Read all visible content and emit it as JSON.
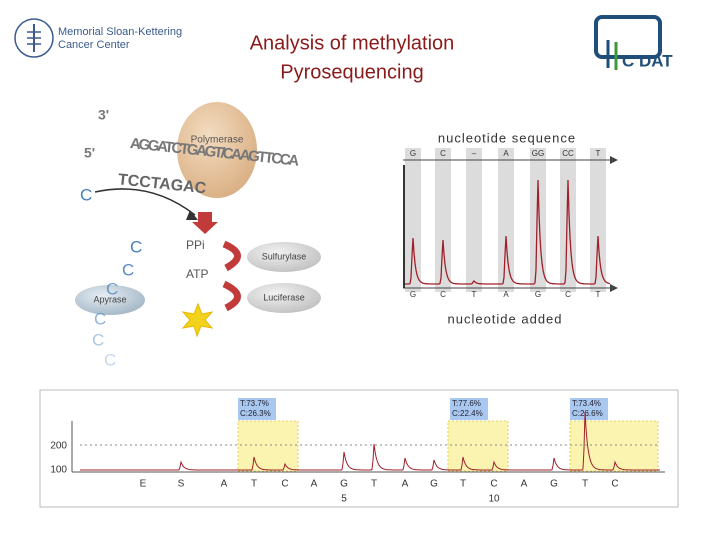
{
  "header": {
    "title_lines": [
      "Analysis of methylation",
      "Pyrosequencing"
    ],
    "logo_left": [
      "Memorial Sloan-Kettering",
      "Cancer Center"
    ],
    "logo_right": "C DAT"
  },
  "diagram": {
    "strand_3": "3'",
    "strand_5": "5'",
    "template": "AGGATCTGAGT/CAAGTTCCA",
    "primer": "TCCTAGAC",
    "incoming": "C",
    "polymerase": "Polymerase",
    "ppi": "PPi",
    "atp": "ATP",
    "sulfurylase": "Sulfurylase",
    "luciferase": "Luciferase",
    "apyrase": "Apyrase",
    "released": [
      "C",
      "C",
      "C",
      "C",
      "C",
      "C"
    ]
  },
  "chromatogram": {
    "title": "nucleotide sequence",
    "sequence": [
      "G",
      "C",
      "–",
      "A",
      "GG",
      "CC",
      "T"
    ],
    "added": [
      "G",
      "C",
      "T",
      "A",
      "G",
      "C",
      "T"
    ],
    "xlabel": "nucleotide added"
  },
  "pyrogram": {
    "results": [
      [
        "T:73.7%",
        "C:26.3%"
      ],
      [
        "T:77.6%",
        "C:22.4%"
      ],
      [
        "T:73.4%",
        "C:26.6%"
      ]
    ],
    "y_labels": [
      "200",
      "100"
    ],
    "dispensation": [
      "E",
      "S",
      "A",
      "T",
      "C",
      "A",
      "G",
      "T",
      "A",
      "G",
      "T",
      "C",
      "A",
      "G",
      "T",
      "C"
    ],
    "position_labels": [
      "5",
      "10"
    ]
  }
}
